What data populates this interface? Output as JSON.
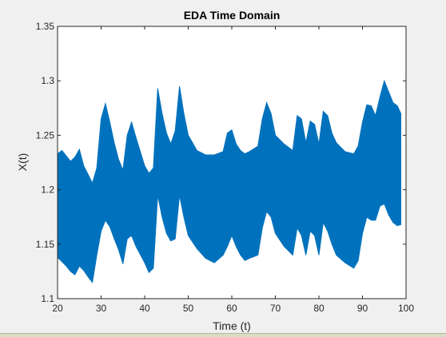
{
  "chart_data": {
    "type": "area",
    "title": "EDA Time Domain",
    "xlabel": "Time (t)",
    "ylabel": "X(t)",
    "xlim": [
      20,
      100
    ],
    "ylim": [
      1.1,
      1.35
    ],
    "xticks": [
      20,
      30,
      40,
      50,
      60,
      70,
      80,
      90,
      100
    ],
    "xtick_labels": [
      "20",
      "30",
      "40",
      "50",
      "60",
      "70",
      "80",
      "90",
      "100"
    ],
    "yticks": [
      1.1,
      1.15,
      1.2,
      1.25,
      1.3,
      1.35
    ],
    "ytick_labels": [
      "1.1",
      "1.15",
      "1.2",
      "1.25",
      "1.3",
      "1.35"
    ],
    "grid": false,
    "series_color": "#0072BD",
    "upper_envelope": {
      "x": [
        20,
        21,
        23,
        24,
        25,
        26,
        27,
        28,
        29,
        30,
        31,
        32,
        33,
        34,
        35,
        36,
        37,
        38,
        40,
        41,
        42,
        43,
        44,
        45,
        46,
        47,
        48,
        49,
        50,
        52,
        54,
        56,
        58,
        59,
        60,
        61,
        62,
        63,
        64,
        66,
        67,
        68,
        69,
        70,
        72,
        74,
        75,
        76,
        77,
        78,
        79,
        80,
        81,
        82,
        83,
        84,
        86,
        88,
        89,
        90,
        91,
        92,
        93,
        94,
        95,
        96,
        97,
        98,
        98.8
      ],
      "y": [
        1.233,
        1.236,
        1.226,
        1.23,
        1.237,
        1.222,
        1.214,
        1.206,
        1.22,
        1.265,
        1.279,
        1.262,
        1.243,
        1.228,
        1.218,
        1.25,
        1.262,
        1.248,
        1.222,
        1.215,
        1.22,
        1.293,
        1.27,
        1.252,
        1.242,
        1.254,
        1.295,
        1.27,
        1.25,
        1.236,
        1.232,
        1.232,
        1.235,
        1.252,
        1.255,
        1.242,
        1.236,
        1.233,
        1.235,
        1.24,
        1.265,
        1.28,
        1.27,
        1.25,
        1.242,
        1.236,
        1.268,
        1.265,
        1.243,
        1.263,
        1.26,
        1.242,
        1.272,
        1.268,
        1.252,
        1.243,
        1.235,
        1.233,
        1.24,
        1.262,
        1.278,
        1.277,
        1.268,
        1.285,
        1.3,
        1.29,
        1.28,
        1.277,
        1.27
      ]
    },
    "lower_envelope": {
      "x": [
        20,
        21,
        22,
        23,
        24,
        25,
        26,
        27,
        28,
        29,
        30,
        31,
        32,
        33,
        34,
        35,
        36,
        37,
        38,
        40,
        41,
        42,
        43,
        44,
        45,
        46,
        47,
        48,
        49,
        50,
        52,
        54,
        56,
        58,
        59,
        60,
        61,
        62,
        63,
        64,
        66,
        67,
        68,
        69,
        70,
        72,
        74,
        75,
        76,
        77,
        78,
        79,
        80,
        81,
        82,
        83,
        84,
        86,
        88,
        89,
        90,
        91,
        92,
        93,
        94,
        95,
        96,
        97,
        98,
        98.8
      ],
      "y": [
        1.138,
        1.134,
        1.13,
        1.125,
        1.122,
        1.13,
        1.126,
        1.12,
        1.115,
        1.14,
        1.162,
        1.172,
        1.166,
        1.155,
        1.145,
        1.132,
        1.155,
        1.158,
        1.148,
        1.133,
        1.124,
        1.128,
        1.195,
        1.175,
        1.16,
        1.153,
        1.155,
        1.195,
        1.175,
        1.158,
        1.146,
        1.137,
        1.133,
        1.14,
        1.148,
        1.158,
        1.148,
        1.14,
        1.135,
        1.137,
        1.14,
        1.165,
        1.18,
        1.175,
        1.16,
        1.148,
        1.14,
        1.165,
        1.158,
        1.14,
        1.162,
        1.158,
        1.14,
        1.17,
        1.162,
        1.15,
        1.14,
        1.133,
        1.128,
        1.135,
        1.16,
        1.175,
        1.172,
        1.172,
        1.185,
        1.187,
        1.177,
        1.17,
        1.167,
        1.168
      ]
    }
  }
}
